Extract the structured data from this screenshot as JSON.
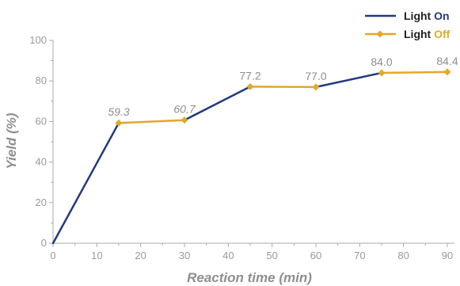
{
  "chart_data": {
    "type": "line",
    "xlabel": "Reaction time (min)",
    "ylabel": "Yield (%)",
    "xlim": [
      0,
      90
    ],
    "ylim": [
      0,
      100
    ],
    "x_ticks": [
      "0",
      "10",
      "20",
      "30",
      "40",
      "50",
      "60",
      "70",
      "80",
      "90"
    ],
    "y_ticks": [
      "0",
      "20",
      "40",
      "60",
      "80",
      "100"
    ],
    "grid": false,
    "legend_position": "top-right",
    "points": [
      {
        "x": 0,
        "y": 0,
        "label": ""
      },
      {
        "x": 15,
        "y": 59.3,
        "label": "59.3"
      },
      {
        "x": 30,
        "y": 60.7,
        "label": "60.7"
      },
      {
        "x": 45,
        "y": 77.2,
        "label": "77.2"
      },
      {
        "x": 60,
        "y": 77.0,
        "label": "77.0"
      },
      {
        "x": 75,
        "y": 84.0,
        "label": "84.0"
      },
      {
        "x": 90,
        "y": 84.4,
        "label": "84.4"
      }
    ],
    "segments": [
      {
        "from": 0,
        "to": 1,
        "state": "on"
      },
      {
        "from": 1,
        "to": 2,
        "state": "off"
      },
      {
        "from": 2,
        "to": 3,
        "state": "on"
      },
      {
        "from": 3,
        "to": 4,
        "state": "off"
      },
      {
        "from": 4,
        "to": 5,
        "state": "on"
      },
      {
        "from": 5,
        "to": 6,
        "state": "off"
      }
    ],
    "series": [
      {
        "key": "on",
        "prefix": "Light ",
        "highlight": "On",
        "color": "#24397c",
        "marker": "none"
      },
      {
        "key": "off",
        "prefix": "Light ",
        "highlight": "Off",
        "color": "#e0a928",
        "marker": "diamond"
      }
    ],
    "axis_color": "#aaaaaa"
  }
}
